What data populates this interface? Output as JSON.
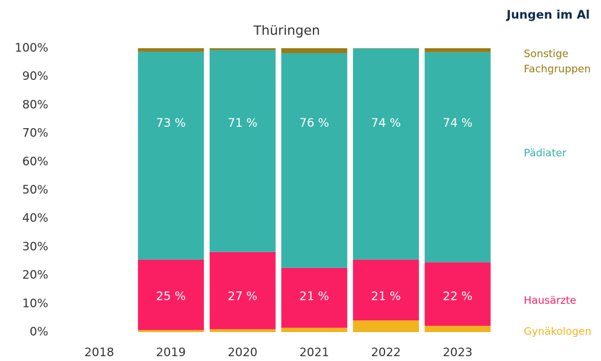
{
  "chart_data": {
    "type": "stacked_bar",
    "title": "Thüringen",
    "header": "Jungen im Al",
    "categories": [
      "2018",
      "2019",
      "2020",
      "2021",
      "2022",
      "2023"
    ],
    "series": [
      {
        "name": "Gynäkologen",
        "color": "#f0b41e",
        "values": [
          null,
          0.7,
          1.0,
          1.5,
          4.1,
          2.2
        ]
      },
      {
        "name": "Hausärzte",
        "color": "#fa1f62",
        "values": [
          null,
          24.8,
          27.2,
          21.1,
          21.4,
          22.4
        ],
        "value_labels": [
          null,
          "25 %",
          "27 %",
          "21 %",
          "21 %",
          "22 %"
        ]
      },
      {
        "name": "Pädiater",
        "color": "#37b3a9",
        "values": [
          null,
          73.3,
          71.2,
          75.7,
          74.4,
          74.0
        ],
        "value_labels": [
          null,
          "73 %",
          "71 %",
          "76 %",
          "74 %",
          "74 %"
        ]
      },
      {
        "name": "Sonstige Fachgruppen",
        "color": "#9c7a14",
        "values": [
          null,
          1.2,
          0.6,
          1.7,
          0.1,
          1.4
        ]
      }
    ],
    "ylim": [
      0,
      100
    ],
    "yticks": [
      {
        "value": 0,
        "label": "0%"
      },
      {
        "value": 10,
        "label": "10%"
      },
      {
        "value": 20,
        "label": "20%"
      },
      {
        "value": 30,
        "label": "30%"
      },
      {
        "value": 40,
        "label": "40%"
      },
      {
        "value": 50,
        "label": "50%"
      },
      {
        "value": 60,
        "label": "60%"
      },
      {
        "value": 70,
        "label": "70%"
      },
      {
        "value": 80,
        "label": "80%"
      },
      {
        "value": 90,
        "label": "90%"
      },
      {
        "value": 100,
        "label": "100%"
      }
    ]
  }
}
